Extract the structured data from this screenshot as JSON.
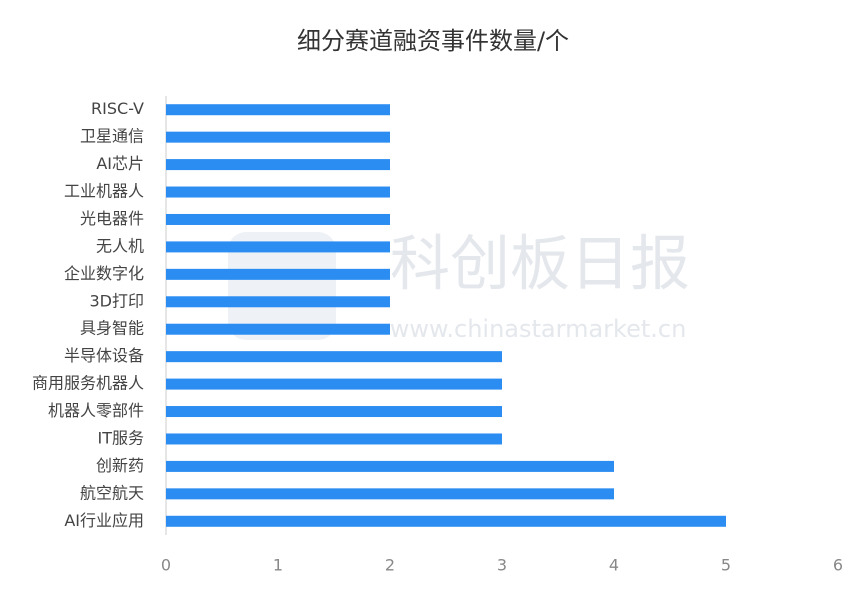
{
  "chart_data": {
    "type": "barh",
    "title": "细分赛道融资事件数量/个",
    "watermark": "科创板日报",
    "watermark_url": "www.chinastarmarket.cn",
    "categories": [
      "RISC-V",
      "卫星通信",
      "AI芯片",
      "工业机器人",
      "光电器件",
      "无人机",
      "企业数字化",
      "3D打印",
      "具身智能",
      "半导体设备",
      "商用服务机器人",
      "机器人零部件",
      "IT服务",
      "创新药",
      "航空航天",
      "AI行业应用"
    ],
    "values": [
      2,
      2,
      2,
      2,
      2,
      2,
      2,
      2,
      2,
      3,
      3,
      3,
      3,
      4,
      4,
      5
    ],
    "color": "#2b8cf2",
    "xlim": [
      0,
      6
    ],
    "xticks": [
      0,
      1,
      2,
      3,
      4,
      5,
      6
    ],
    "grid": false
  }
}
